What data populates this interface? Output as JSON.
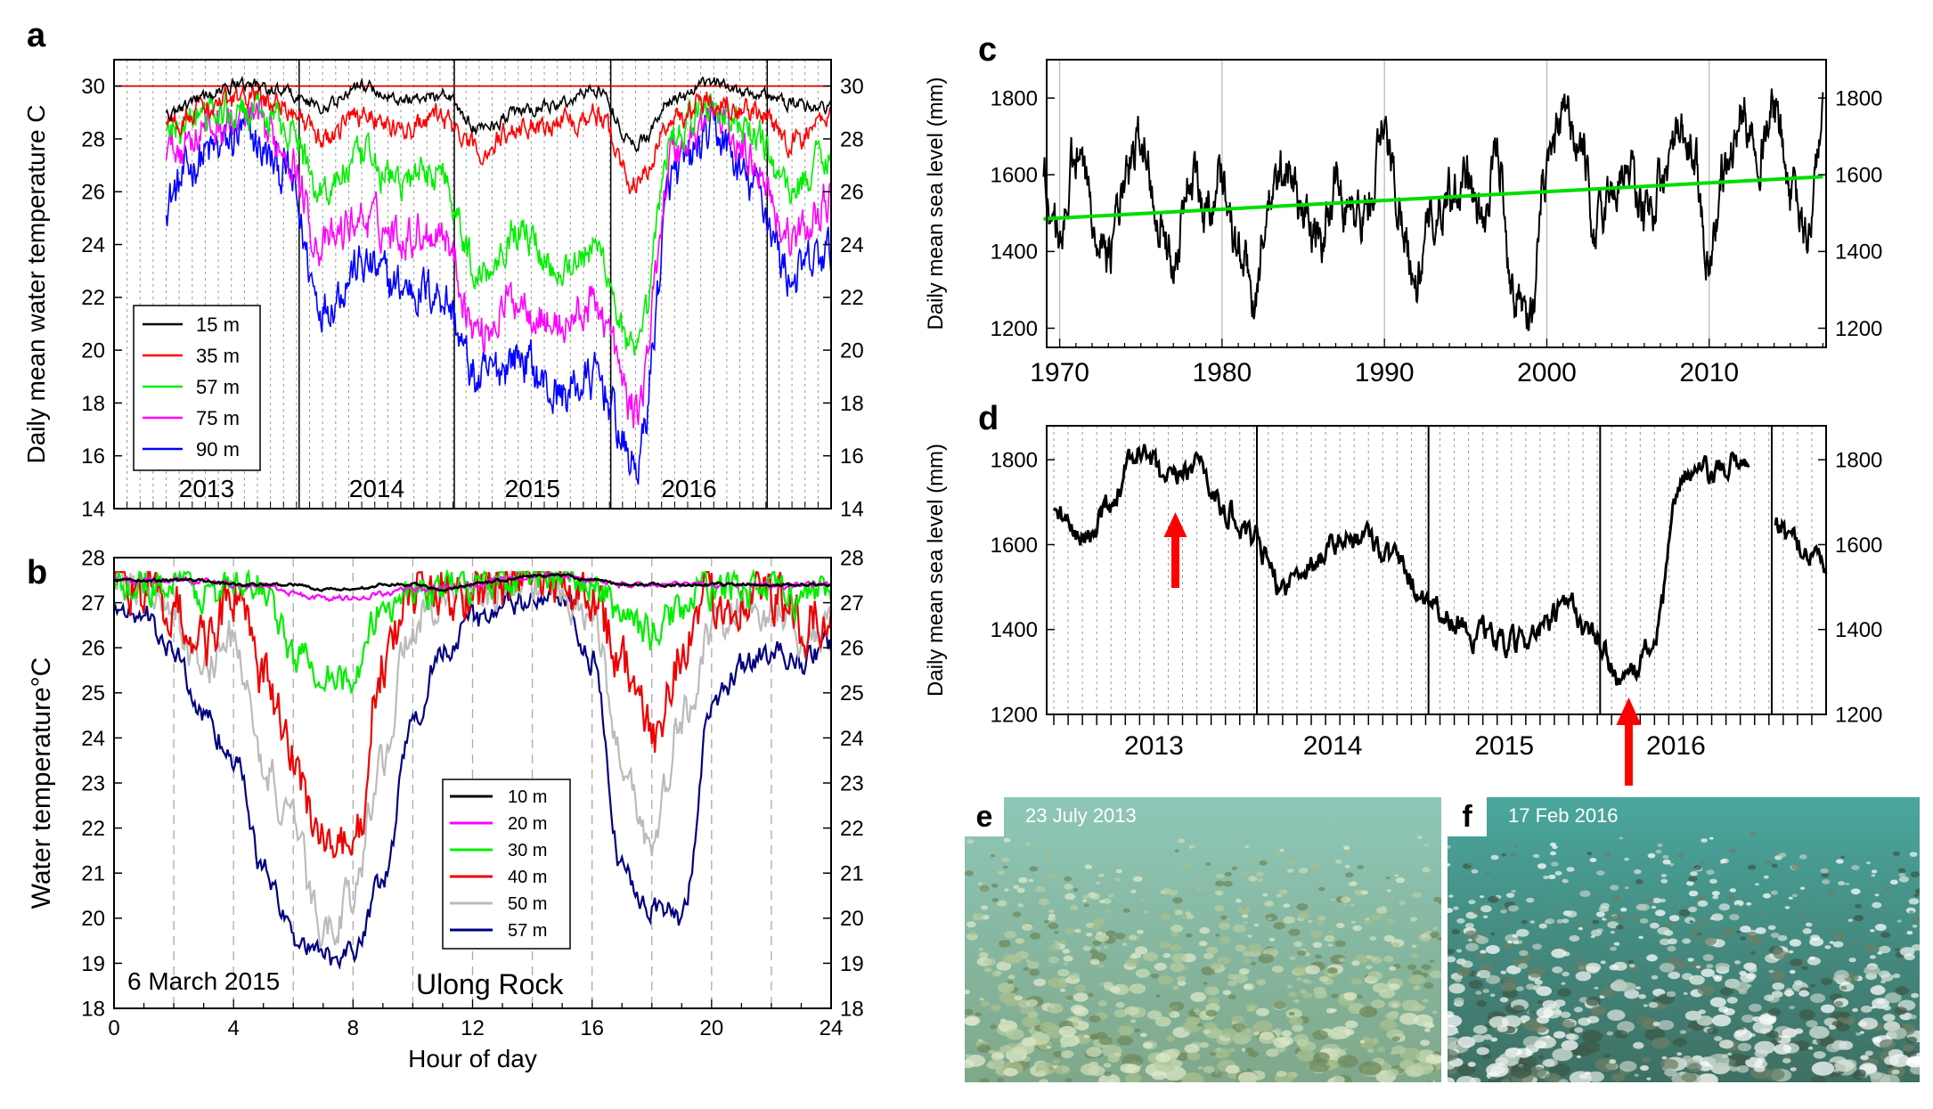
{
  "panel_letters": {
    "a": "a",
    "b": "b",
    "c": "c",
    "d": "d",
    "e": "e",
    "f": "f"
  },
  "panel_a": {
    "ylabel": "Daily mean water temperature C",
    "year_labels": [
      "2013",
      "2014",
      "2015",
      "2016"
    ],
    "yticks": [
      14,
      16,
      18,
      20,
      22,
      24,
      26,
      28,
      30
    ],
    "threshold": 30,
    "legend": [
      {
        "label": "15 m",
        "color": "#000000"
      },
      {
        "label": "35 m",
        "color": "#ff0000"
      },
      {
        "label": "57 m",
        "color": "#00ee00"
      },
      {
        "label": "75 m",
        "color": "#ff00ff"
      },
      {
        "label": "90 m",
        "color": "#0000ff"
      }
    ]
  },
  "panel_b": {
    "ylabel": "Water temperature°C",
    "xlabel": "Hour of day",
    "date_note": "6 March 2015",
    "site": "Ulong Rock",
    "xticks": [
      0,
      4,
      8,
      12,
      16,
      20,
      24
    ],
    "yticks": [
      18,
      19,
      20,
      21,
      22,
      23,
      24,
      25,
      26,
      27,
      28
    ],
    "legend": [
      {
        "label": "10 m",
        "color": "#000000"
      },
      {
        "label": "20 m",
        "color": "#ff00ff"
      },
      {
        "label": "30 m",
        "color": "#00ee00"
      },
      {
        "label": "40 m",
        "color": "#ee0000"
      },
      {
        "label": "50 m",
        "color": "#bbbbbb"
      },
      {
        "label": "57 m",
        "color": "#000080"
      }
    ]
  },
  "panel_c": {
    "ylabel": "Daily mean sea level (mm)",
    "xticks": [
      1970,
      1980,
      1990,
      2000,
      2010
    ],
    "yticks": [
      1200,
      1400,
      1600,
      1800
    ],
    "trend": {
      "start_year": 1969,
      "start_value": 1485,
      "end_year": 2017,
      "end_value": 1595,
      "color": "#00dd00"
    }
  },
  "panel_d": {
    "ylabel": "Daily mean sea level (mm)",
    "year_labels": [
      "2013",
      "2014",
      "2015",
      "2016"
    ],
    "yticks": [
      1200,
      1400,
      1600,
      1800
    ],
    "arrow_color": "#ff0000"
  },
  "photos": {
    "e": {
      "date": "23 July 2013"
    },
    "f": {
      "date": "17 Feb 2016"
    }
  },
  "chart_data": [
    {
      "panel": "a",
      "type": "line",
      "title": "",
      "xlabel": "",
      "ylabel": "Daily mean water temperature C",
      "x": [
        "2013-01",
        "2013-04",
        "2013-07",
        "2013-10",
        "2014-01",
        "2014-04",
        "2014-07",
        "2014-10",
        "2015-01",
        "2015-04",
        "2015-07",
        "2015-10",
        "2016-01",
        "2016-04",
        "2016-07",
        "2016-10",
        "2017-01",
        "2017-04"
      ],
      "ylim": [
        14,
        31
      ],
      "series": [
        {
          "name": "15 m",
          "values": [
            29,
            29.6,
            30.1,
            29.8,
            29.2,
            30.0,
            29.5,
            29.7,
            28.4,
            29.0,
            29.3,
            29.9,
            27.8,
            29.5,
            30.1,
            29.8,
            29.3,
            29.2
          ]
        },
        {
          "name": "35 m",
          "values": [
            28.6,
            29.2,
            29.6,
            29.3,
            28.0,
            29.0,
            28.3,
            28.8,
            27.5,
            28.4,
            28.7,
            28.9,
            26.3,
            28.8,
            29.6,
            29.0,
            27.9,
            28.9
          ]
        },
        {
          "name": "57 m",
          "values": [
            28.2,
            28.9,
            29.0,
            28.6,
            26.1,
            27.2,
            26.4,
            26.8,
            22.9,
            24.6,
            23.2,
            23.8,
            19.7,
            28.3,
            29.2,
            28.1,
            26.1,
            27.6
          ]
        },
        {
          "name": "75 m",
          "values": [
            27.5,
            28.4,
            28.7,
            27.8,
            23.9,
            25.0,
            24.4,
            24.6,
            20.7,
            22.0,
            20.9,
            21.7,
            17.7,
            27.6,
            28.8,
            27.3,
            24.2,
            25.7
          ]
        },
        {
          "name": "90 m",
          "values": [
            25.8,
            27.4,
            28.1,
            26.8,
            21.8,
            23.2,
            22.4,
            22.2,
            18.8,
            19.8,
            18.3,
            18.9,
            15.6,
            26.6,
            28.2,
            26.2,
            22.8,
            23.6
          ]
        }
      ],
      "threshold": 30
    },
    {
      "panel": "b",
      "type": "line",
      "title": "",
      "xlabel": "Hour of day",
      "ylabel": "Water temperature°C",
      "x": [
        0,
        1,
        2,
        3,
        4,
        5,
        6,
        7,
        8,
        9,
        10,
        11,
        12,
        13,
        14,
        15,
        16,
        17,
        18,
        19,
        20,
        21,
        22,
        23,
        24
      ],
      "xlim": [
        0,
        24
      ],
      "ylim": [
        18,
        28
      ],
      "series": [
        {
          "name": "10 m",
          "values": [
            27.5,
            27.5,
            27.5,
            27.5,
            27.4,
            27.4,
            27.4,
            27.3,
            27.3,
            27.4,
            27.4,
            27.3,
            27.4,
            27.5,
            27.6,
            27.6,
            27.5,
            27.4,
            27.4,
            27.4,
            27.4,
            27.4,
            27.4,
            27.4,
            27.4
          ]
        },
        {
          "name": "20 m",
          "values": [
            27.5,
            27.5,
            27.5,
            27.5,
            27.4,
            27.4,
            27.2,
            27.1,
            27.1,
            27.2,
            27.3,
            27.3,
            27.4,
            27.5,
            27.6,
            27.6,
            27.5,
            27.4,
            27.4,
            27.4,
            27.4,
            27.4,
            27.4,
            27.4,
            27.4
          ]
        },
        {
          "name": "30 m",
          "values": [
            27.5,
            27.5,
            27.4,
            27.2,
            27.3,
            27.4,
            25.8,
            25.6,
            25.2,
            26.9,
            27.3,
            27.3,
            27.4,
            27.5,
            27.6,
            27.5,
            27.4,
            26.8,
            26.3,
            26.9,
            27.3,
            27.4,
            27.3,
            27.1,
            27.4
          ]
        },
        {
          "name": "40 m",
          "values": [
            27.5,
            27.4,
            26.8,
            26.1,
            27.2,
            25.3,
            23.5,
            21.7,
            21.4,
            25.6,
            27.2,
            27.3,
            27.3,
            27.4,
            27.6,
            27.4,
            27.3,
            25.7,
            24.0,
            26.0,
            27.0,
            27.2,
            27.2,
            26.4,
            26.7
          ]
        },
        {
          "name": "50 m",
          "values": [
            27.4,
            27.3,
            26.6,
            25.5,
            26.2,
            23.4,
            21.9,
            19.7,
            20.5,
            23.6,
            26.6,
            27.2,
            27.2,
            27.3,
            27.5,
            27.2,
            26.8,
            23.5,
            21.6,
            24.4,
            26.3,
            26.9,
            26.8,
            26.2,
            26.4
          ]
        },
        {
          "name": "57 m",
          "values": [
            26.9,
            26.7,
            25.9,
            24.5,
            23.6,
            21.1,
            19.6,
            19.1,
            19.3,
            20.8,
            24.3,
            26.0,
            26.6,
            26.9,
            27.0,
            27.1,
            25.7,
            21.1,
            20.3,
            20.0,
            24.6,
            25.6,
            25.9,
            25.7,
            26.1
          ]
        }
      ],
      "date_note": "6 March 2015",
      "site": "Ulong Rock"
    },
    {
      "panel": "c",
      "type": "line",
      "title": "",
      "xlabel": "",
      "ylabel": "Daily mean sea level (mm)",
      "x": [
        1969,
        1970,
        1971,
        1972,
        1973,
        1974,
        1975,
        1976,
        1977,
        1978,
        1979,
        1980,
        1981,
        1982,
        1983,
        1984,
        1985,
        1986,
        1987,
        1988,
        1989,
        1990,
        1991,
        1992,
        1993,
        1994,
        1995,
        1996,
        1997,
        1998,
        1999,
        2000,
        2001,
        2002,
        2003,
        2004,
        2005,
        2006,
        2007,
        2008,
        2009,
        2010,
        2011,
        2012,
        2013,
        2014,
        2015,
        2016,
        2017
      ],
      "xlim": [
        1969,
        2017
      ],
      "ylim": [
        1150,
        1900
      ],
      "series": [
        {
          "name": "",
          "values": [
            1560,
            1440,
            1640,
            1520,
            1400,
            1560,
            1690,
            1530,
            1380,
            1600,
            1510,
            1620,
            1400,
            1300,
            1540,
            1620,
            1500,
            1420,
            1590,
            1480,
            1520,
            1700,
            1520,
            1330,
            1490,
            1560,
            1620,
            1460,
            1650,
            1300,
            1240,
            1600,
            1730,
            1680,
            1450,
            1560,
            1620,
            1500,
            1560,
            1690,
            1650,
            1380,
            1620,
            1750,
            1700,
            1760,
            1560,
            1440,
            1720
          ]
        }
      ],
      "trend": {
        "x": [
          1969,
          2017
        ],
        "values": [
          1485,
          1595
        ]
      }
    },
    {
      "panel": "d",
      "type": "line",
      "title": "",
      "xlabel": "",
      "ylabel": "Daily mean sea level (mm)",
      "x": [
        "2012-11",
        "2013-01",
        "2013-03",
        "2013-05",
        "2013-07",
        "2013-09",
        "2013-11",
        "2014-01",
        "2014-03",
        "2014-05",
        "2014-07",
        "2014-09",
        "2014-11",
        "2015-01",
        "2015-03",
        "2015-05",
        "2015-07",
        "2015-09",
        "2015-11",
        "2016-01",
        "2016-03",
        "2016-05",
        "2016-07",
        "2016-09",
        "2016-11",
        "2017-01",
        "2017-03",
        "2017-05"
      ],
      "ylim": [
        1200,
        1880
      ],
      "series": [
        {
          "name": "",
          "values": [
            1690,
            1600,
            1710,
            1820,
            1740,
            1800,
            1680,
            1600,
            1500,
            1560,
            1610,
            1620,
            1560,
            1480,
            1420,
            1380,
            1360,
            1400,
            1450,
            1370,
            1270,
            1380,
            1770,
            1760,
            1800,
            1650,
            1600,
            1560
          ]
        }
      ],
      "arrows": [
        "2013-07",
        "2016-03"
      ]
    }
  ]
}
